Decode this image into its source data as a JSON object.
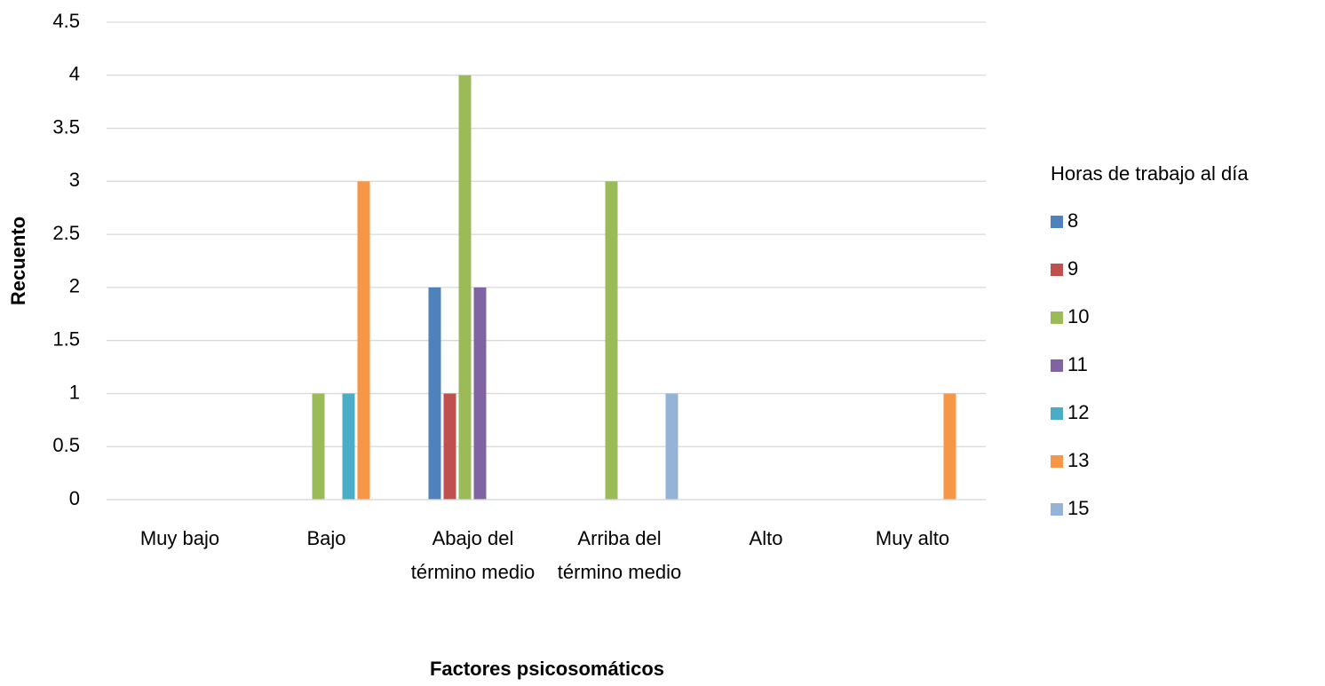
{
  "chart_data": {
    "type": "bar",
    "x_label": "Factores psicosomáticos",
    "y_label": "Recuento",
    "legend_title": "Horas de trabajo al día",
    "legend": "right",
    "grid": true,
    "categories": [
      "Muy bajo",
      "Bajo",
      "Abajo del término medio",
      "Arriba del término medio",
      "Alto",
      "Muy alto"
    ],
    "series": [
      {
        "name": "8",
        "color": "#4f81bd",
        "values": [
          null,
          null,
          2,
          null,
          null,
          null
        ]
      },
      {
        "name": "9",
        "color": "#c0504d",
        "values": [
          null,
          null,
          1,
          null,
          null,
          null
        ]
      },
      {
        "name": "10",
        "color": "#9bbb59",
        "values": [
          null,
          1,
          4,
          3,
          null,
          null
        ]
      },
      {
        "name": "11",
        "color": "#8064a2",
        "values": [
          null,
          null,
          2,
          null,
          null,
          null
        ]
      },
      {
        "name": "12",
        "color": "#4bacc6",
        "values": [
          null,
          1,
          null,
          null,
          null,
          null
        ]
      },
      {
        "name": "13",
        "color": "#f79646",
        "values": [
          null,
          3,
          null,
          null,
          null,
          1
        ]
      },
      {
        "name": "15",
        "color": "#95b3d7",
        "values": [
          null,
          null,
          null,
          1,
          null,
          null
        ]
      }
    ],
    "ylim": [
      0,
      4.5
    ],
    "yticks": [
      0,
      0.5,
      1,
      1.5,
      2,
      2.5,
      3,
      3.5,
      4,
      4.5
    ]
  }
}
